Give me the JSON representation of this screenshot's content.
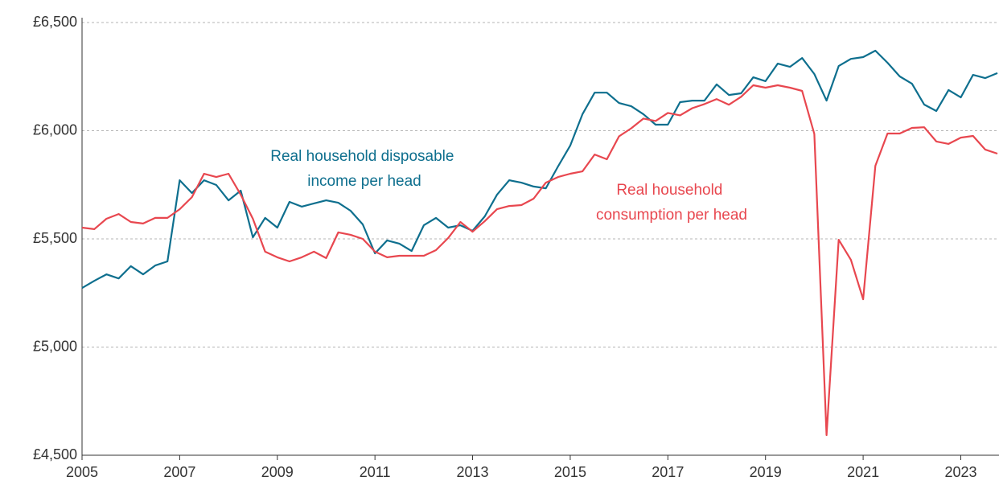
{
  "chart_data": {
    "type": "line",
    "x": [
      2005,
      2005.25,
      2005.5,
      2005.75,
      2006,
      2006.25,
      2006.5,
      2006.75,
      2007,
      2007.25,
      2007.5,
      2007.75,
      2008,
      2008.25,
      2008.5,
      2008.75,
      2009,
      2009.25,
      2009.5,
      2009.75,
      2010,
      2010.25,
      2010.5,
      2010.75,
      2011,
      2011.25,
      2011.5,
      2011.75,
      2012,
      2012.25,
      2012.5,
      2012.75,
      2013,
      2013.25,
      2013.5,
      2013.75,
      2014,
      2014.25,
      2014.5,
      2014.75,
      2015,
      2015.25,
      2015.5,
      2015.75,
      2016,
      2016.25,
      2016.5,
      2016.75,
      2017,
      2017.25,
      2017.5,
      2017.75,
      2018,
      2018.25,
      2018.5,
      2018.75,
      2019,
      2019.25,
      2019.5,
      2019.75,
      2020,
      2020.25,
      2020.5,
      2020.75,
      2021,
      2021.25,
      2021.5,
      2021.75,
      2022,
      2022.25,
      2022.5,
      2022.75,
      2023,
      2023.25,
      2023.5,
      2023.75
    ],
    "series": [
      {
        "name": "Real household disposable income per head",
        "color": "#0e6f8e",
        "values": [
          5273,
          5306,
          5336,
          5317,
          5374,
          5336,
          5377,
          5396,
          5771,
          5712,
          5771,
          5749,
          5678,
          5723,
          5507,
          5597,
          5552,
          5671,
          5649,
          5664,
          5678,
          5667,
          5630,
          5567,
          5433,
          5493,
          5478,
          5444,
          5563,
          5597,
          5552,
          5563,
          5537,
          5604,
          5704,
          5771,
          5760,
          5742,
          5734,
          5835,
          5931,
          6076,
          6176,
          6176,
          6128,
          6113,
          6076,
          6028,
          6028,
          6132,
          6139,
          6139,
          6214,
          6165,
          6173,
          6247,
          6229,
          6310,
          6295,
          6336,
          6262,
          6139,
          6299,
          6332,
          6340,
          6370,
          6314,
          6251,
          6217,
          6121,
          6091,
          6188,
          6154,
          6258,
          6243,
          6266
        ]
      },
      {
        "name": "Real household consumption per head",
        "color": "#e8474f",
        "values": [
          5552,
          5545,
          5593,
          5615,
          5578,
          5571,
          5597,
          5597,
          5637,
          5693,
          5801,
          5786,
          5801,
          5704,
          5593,
          5441,
          5415,
          5396,
          5415,
          5441,
          5411,
          5530,
          5519,
          5500,
          5441,
          5415,
          5422,
          5422,
          5422,
          5448,
          5504,
          5578,
          5533,
          5582,
          5637,
          5652,
          5656,
          5686,
          5760,
          5786,
          5801,
          5812,
          5890,
          5868,
          5974,
          6011,
          6056,
          6045,
          6082,
          6071,
          6104,
          6123,
          6146,
          6120,
          6157,
          6210,
          6199,
          6210,
          6199,
          6184,
          5985,
          4593,
          5496,
          5403,
          5221,
          5838,
          5987,
          5987,
          6013,
          6016,
          5950,
          5939,
          5968,
          5976,
          5913,
          5894
        ]
      }
    ],
    "xlim": [
      2005,
      2023.75
    ],
    "xticks": [
      2005,
      2007,
      2009,
      2011,
      2013,
      2015,
      2017,
      2019,
      2021,
      2023
    ],
    "ylim": [
      4500,
      6500
    ],
    "yticks": [
      {
        "value": 4500,
        "label": "£4,500"
      },
      {
        "value": 5000,
        "label": "£5,000"
      },
      {
        "value": 5500,
        "label": "£5,500"
      },
      {
        "value": 6000,
        "label": "£6,000"
      },
      {
        "value": 6500,
        "label": "£6,500"
      }
    ],
    "grid": true
  }
}
